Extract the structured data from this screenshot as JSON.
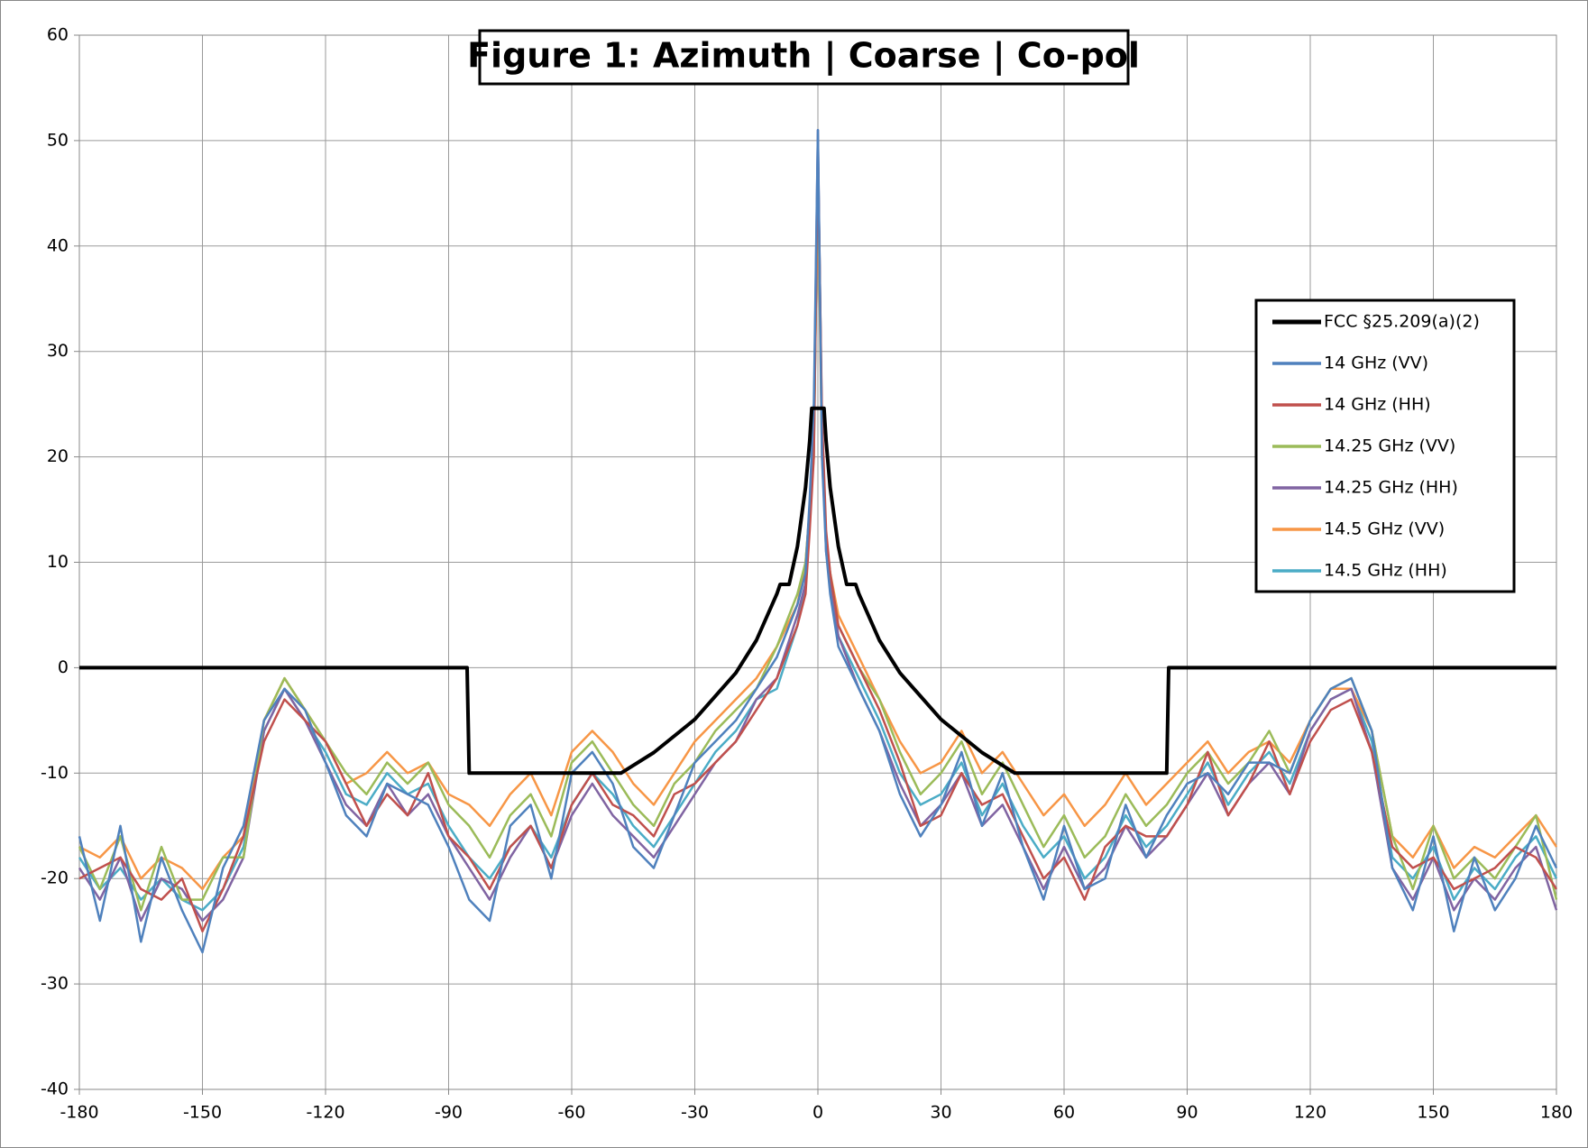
{
  "chart_data": {
    "type": "line",
    "title": "Figure 1: Azimuth | Coarse | Co-pol",
    "x": [
      -180,
      -175,
      -170,
      -165,
      -160,
      -155,
      -150,
      -145,
      -140,
      -135,
      -130,
      -125,
      -120,
      -115,
      -110,
      -105,
      -100,
      -95,
      -90,
      -85,
      -80,
      -75,
      -70,
      -65,
      -60,
      -55,
      -50,
      -45,
      -40,
      -35,
      -30,
      -25,
      -20,
      -15,
      -10,
      -5,
      -3,
      -2,
      -1,
      0,
      1,
      2,
      3,
      5,
      10,
      15,
      20,
      25,
      30,
      35,
      40,
      45,
      50,
      55,
      60,
      65,
      70,
      75,
      80,
      85,
      90,
      95,
      100,
      105,
      110,
      115,
      120,
      125,
      130,
      135,
      140,
      145,
      150,
      155,
      160,
      165,
      170,
      175,
      180
    ],
    "series": [
      {
        "name": "FCC §25.209(a)(2)",
        "color": "#000000",
        "width": 4,
        "x": [
          -180,
          -85.5,
          -85,
          -48,
          -40,
          -30,
          -20,
          -15,
          -10,
          -9.2,
          -7,
          -5,
          -3,
          -2,
          -1.5,
          1.5,
          2,
          3,
          5,
          7,
          9.2,
          10,
          15,
          20,
          30,
          40,
          48,
          85,
          85.5,
          180
        ],
        "values": [
          0,
          0,
          -10,
          -10,
          -8.05,
          -4.9,
          -0.5,
          2.6,
          7,
          7.9,
          7.9,
          11.5,
          17.1,
          21.5,
          24.6,
          24.6,
          21.5,
          17.1,
          11.5,
          7.9,
          7.9,
          7,
          2.6,
          -0.5,
          -4.9,
          -8.05,
          -10,
          -10,
          0,
          0
        ]
      },
      {
        "name": "14 GHz (VV)",
        "color": "#4f81bd",
        "width": 2.5,
        "values": [
          -16,
          -24,
          -15,
          -26,
          -18,
          -23,
          -27,
          -19,
          -15,
          -5,
          -2,
          -4,
          -9,
          -14,
          -16,
          -11,
          -12,
          -13,
          -17,
          -22,
          -24,
          -15,
          -13,
          -20,
          -10,
          -8,
          -11,
          -17,
          -19,
          -14,
          -9,
          -7,
          -5,
          -2,
          1,
          6,
          9,
          16,
          25,
          51,
          20,
          11,
          7,
          2,
          -2,
          -6,
          -12,
          -16,
          -13,
          -8,
          -15,
          -10,
          -17,
          -22,
          -15,
          -21,
          -20,
          -13,
          -18,
          -14,
          -11,
          -10,
          -12,
          -9,
          -9,
          -10,
          -5,
          -2,
          -1,
          -6,
          -19,
          -23,
          -16,
          -25,
          -18,
          -23,
          -20,
          -15,
          -19
        ]
      },
      {
        "name": "14 GHz (HH)",
        "color": "#c0504d",
        "width": 2.5,
        "values": [
          -20,
          -19,
          -18,
          -21,
          -22,
          -20,
          -25,
          -21,
          -16,
          -7,
          -3,
          -5,
          -7,
          -11,
          -15,
          -12,
          -14,
          -10,
          -16,
          -18,
          -21,
          -17,
          -15,
          -19,
          -13,
          -10,
          -13,
          -14,
          -16,
          -12,
          -11,
          -9,
          -7,
          -4,
          -1,
          4,
          7,
          13,
          20,
          49,
          24,
          13,
          9,
          4,
          0,
          -4,
          -9,
          -15,
          -14,
          -10,
          -13,
          -12,
          -16,
          -20,
          -18,
          -22,
          -17,
          -15,
          -16,
          -16,
          -13,
          -8,
          -14,
          -11,
          -7,
          -12,
          -7,
          -4,
          -3,
          -8,
          -17,
          -19,
          -18,
          -21,
          -20,
          -19,
          -17,
          -18,
          -21
        ]
      },
      {
        "name": "14.25 GHz (VV)",
        "color": "#9bbb59",
        "width": 2.5,
        "values": [
          -17,
          -21,
          -16,
          -23,
          -17,
          -22,
          -22,
          -18,
          -18,
          -5,
          -1,
          -4,
          -7,
          -10,
          -12,
          -9,
          -11,
          -9,
          -13,
          -15,
          -18,
          -14,
          -12,
          -16,
          -9,
          -7,
          -10,
          -13,
          -15,
          -11,
          -9,
          -6,
          -4,
          -2,
          2,
          7,
          10,
          15,
          20,
          48,
          21,
          12,
          9,
          4,
          0,
          -3,
          -8,
          -12,
          -10,
          -7,
          -12,
          -9,
          -13,
          -17,
          -14,
          -18,
          -16,
          -12,
          -15,
          -13,
          -10,
          -8,
          -11,
          -9,
          -6,
          -10,
          -5,
          -2,
          -1,
          -6,
          -16,
          -21,
          -15,
          -20,
          -18,
          -20,
          -17,
          -14,
          -22
        ]
      },
      {
        "name": "14.25 GHz (HH)",
        "color": "#8064a2",
        "width": 2.5,
        "values": [
          -19,
          -22,
          -18,
          -24,
          -20,
          -21,
          -24,
          -22,
          -18,
          -6,
          -2,
          -5,
          -9,
          -13,
          -15,
          -11,
          -14,
          -12,
          -16,
          -19,
          -22,
          -18,
          -15,
          -19,
          -14,
          -11,
          -14,
          -16,
          -18,
          -15,
          -12,
          -9,
          -7,
          -3,
          -1,
          5,
          8,
          14,
          23,
          51,
          22,
          11,
          8,
          3,
          -2,
          -6,
          -11,
          -15,
          -13,
          -10,
          -15,
          -13,
          -17,
          -21,
          -17,
          -21,
          -19,
          -15,
          -18,
          -16,
          -13,
          -10,
          -14,
          -11,
          -9,
          -12,
          -6,
          -3,
          -2,
          -8,
          -19,
          -22,
          -18,
          -23,
          -20,
          -22,
          -19,
          -17,
          -23
        ]
      },
      {
        "name": "14.5 GHz (VV)",
        "color": "#f79646",
        "width": 2.5,
        "values": [
          -17,
          -18,
          -16,
          -20,
          -18,
          -19,
          -21,
          -18,
          -16,
          -5,
          -1,
          -4,
          -7,
          -11,
          -10,
          -8,
          -10,
          -9,
          -12,
          -13,
          -15,
          -12,
          -10,
          -14,
          -8,
          -6,
          -8,
          -11,
          -13,
          -10,
          -7,
          -5,
          -3,
          -1,
          2,
          6,
          10,
          15,
          22,
          46,
          20,
          12,
          9,
          5,
          1,
          -3,
          -7,
          -10,
          -9,
          -6,
          -10,
          -8,
          -11,
          -14,
          -12,
          -15,
          -13,
          -10,
          -13,
          -11,
          -9,
          -7,
          -10,
          -8,
          -7,
          -9,
          -5,
          -2,
          -2,
          -6,
          -16,
          -18,
          -15,
          -19,
          -17,
          -18,
          -16,
          -14,
          -17
        ]
      },
      {
        "name": "14.5 GHz (HH)",
        "color": "#4bacc6",
        "width": 2.5,
        "values": [
          -18,
          -21,
          -19,
          -22,
          -20,
          -22,
          -23,
          -21,
          -17,
          -6,
          -2,
          -5,
          -8,
          -12,
          -13,
          -10,
          -12,
          -11,
          -15,
          -18,
          -20,
          -17,
          -15,
          -18,
          -13,
          -10,
          -12,
          -15,
          -17,
          -14,
          -11,
          -8,
          -6,
          -3,
          -2,
          4,
          8,
          14,
          21,
          50,
          23,
          12,
          8,
          3,
          -1,
          -5,
          -10,
          -13,
          -12,
          -9,
          -14,
          -11,
          -15,
          -18,
          -16,
          -20,
          -18,
          -14,
          -17,
          -15,
          -12,
          -9,
          -13,
          -10,
          -8,
          -11,
          -6,
          -3,
          -2,
          -7,
          -18,
          -20,
          -17,
          -22,
          -19,
          -21,
          -18,
          -16,
          -20
        ]
      }
    ],
    "xlim": [
      -180,
      180
    ],
    "xticks": [
      -180,
      -150,
      -120,
      -90,
      -60,
      -30,
      0,
      30,
      60,
      90,
      120,
      150,
      180
    ],
    "ylim": [
      -40,
      60
    ],
    "yticks": [
      -40,
      -30,
      -20,
      -10,
      0,
      10,
      20,
      30,
      40,
      50,
      60
    ],
    "grid": true,
    "legend": "right"
  }
}
